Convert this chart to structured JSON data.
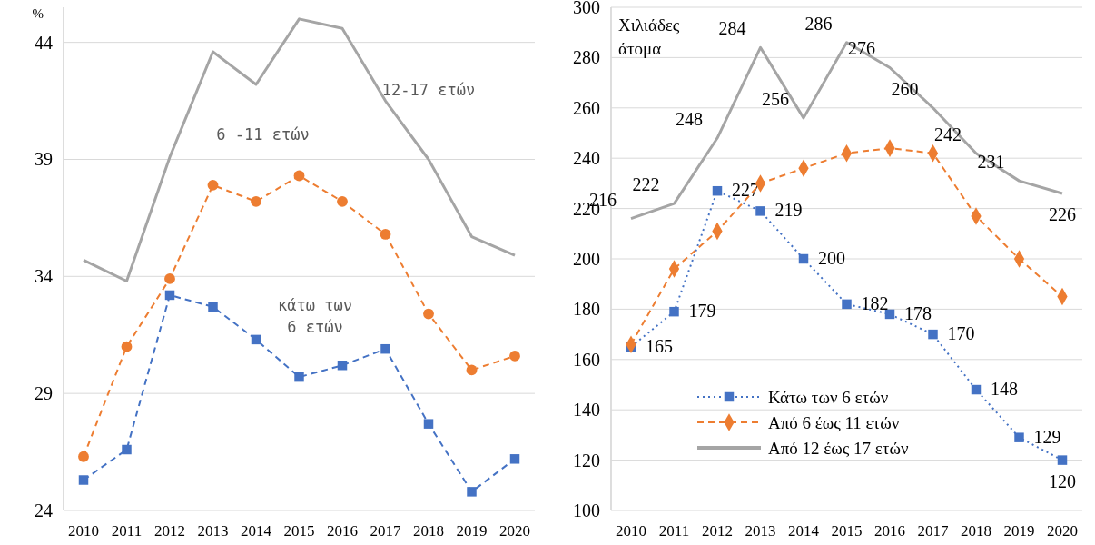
{
  "chart_data": [
    {
      "type": "line",
      "ylabel": "%",
      "categories": [
        "2010",
        "2011",
        "2012",
        "2013",
        "2014",
        "2015",
        "2016",
        "2017",
        "2018",
        "2019",
        "2020"
      ],
      "ylim": [
        24,
        45.5
      ],
      "yticks": [
        24,
        29,
        34,
        39,
        44
      ],
      "grid": "y",
      "legend": false,
      "series": [
        {
          "name": "κάτω των 6 ετών",
          "color": "#4472c4",
          "marker": "square",
          "line_style": "dashed",
          "values": [
            25.3,
            26.6,
            33.2,
            32.7,
            31.3,
            29.7,
            30.2,
            30.9,
            27.7,
            24.8,
            26.2
          ]
        },
        {
          "name": "6 -11 ετών",
          "color": "#ed7d31",
          "marker": "circle",
          "line_style": "dashed",
          "values": [
            26.3,
            31.0,
            33.9,
            37.9,
            37.2,
            38.3,
            37.2,
            35.8,
            32.4,
            30.0,
            30.6
          ]
        },
        {
          "name": "12-17 ετών",
          "color": "#a5a5a5",
          "marker": "none",
          "line_style": "solid",
          "values": [
            34.7,
            33.8,
            39.1,
            43.6,
            42.2,
            45.0,
            44.6,
            41.5,
            39.0,
            35.7,
            34.9
          ]
        }
      ]
    },
    {
      "type": "line",
      "ylabel": "Χιλιάδες άτομα",
      "categories": [
        "2010",
        "2011",
        "2012",
        "2013",
        "2014",
        "2015",
        "2016",
        "2017",
        "2018",
        "2019",
        "2020"
      ],
      "ylim": [
        100,
        300
      ],
      "yticks": [
        100,
        120,
        140,
        160,
        180,
        200,
        220,
        240,
        260,
        280,
        300
      ],
      "grid": "y",
      "legend": "bottom",
      "series": [
        {
          "name": "Κάτω των 6 ετών",
          "color": "#4472c4",
          "marker": "square",
          "line_style": "dotted",
          "values": [
            165,
            179,
            227,
            219,
            200,
            182,
            178,
            170,
            148,
            129,
            120
          ],
          "value_labels": [
            "165",
            "179",
            "227",
            "219",
            "200",
            "182",
            "178",
            "170",
            "148",
            "129",
            "120"
          ]
        },
        {
          "name": "Από 6 έως 11 ετών",
          "color": "#ed7d31",
          "marker": "diamond",
          "line_style": "dashed",
          "values": [
            166,
            196,
            211,
            230,
            236,
            242,
            244,
            242,
            217,
            200,
            185
          ]
        },
        {
          "name": "Από 12 έως 17 ετών",
          "color": "#a5a5a5",
          "marker": "none",
          "line_style": "solid",
          "values": [
            216,
            222,
            248,
            284,
            256,
            286,
            276,
            260,
            242,
            231,
            226
          ],
          "value_labels": [
            "216",
            "222",
            "248",
            "284",
            "256",
            "286",
            "276",
            "260",
            "242",
            "231",
            "226"
          ]
        }
      ]
    }
  ]
}
